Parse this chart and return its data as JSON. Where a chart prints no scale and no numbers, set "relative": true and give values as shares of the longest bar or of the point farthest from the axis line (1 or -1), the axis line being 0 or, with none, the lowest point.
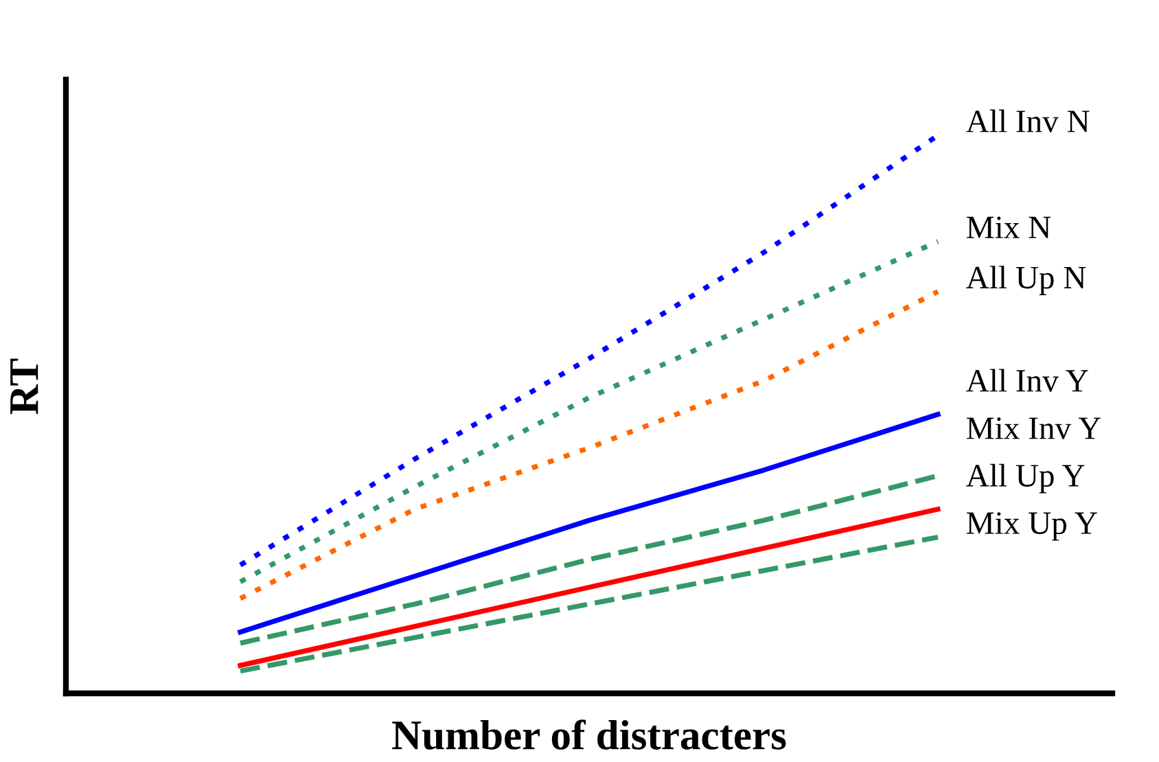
{
  "chart_data": {
    "type": "line",
    "relative": true,
    "xlabel": "Number of distracters",
    "ylabel": "RT",
    "categories": [
      null,
      null,
      null,
      null,
      null
    ],
    "legend": false,
    "grid": false,
    "tick_labels": false,
    "marker": "none",
    "series": [
      {
        "name": "All Inv N",
        "color": "#0000ff",
        "line_style": "dotted",
        "values": [
          0.23,
          0.42,
          0.6,
          0.79,
          1.0
        ]
      },
      {
        "name": "Mix N",
        "color": "#339966",
        "line_style": "dotted",
        "values": [
          0.2,
          0.37,
          0.53,
          0.67,
          0.81
        ]
      },
      {
        "name": "All Up N",
        "color": "#ff6600",
        "line_style": "dotted",
        "values": [
          0.17,
          0.33,
          0.44,
          0.56,
          0.72
        ]
      },
      {
        "name": "All Inv Y",
        "color": "#0000ff",
        "line_style": "solid",
        "values": [
          0.11,
          0.21,
          0.31,
          0.4,
          0.5
        ]
      },
      {
        "name": "Mix Inv Y",
        "color": "#339966",
        "line_style": "dashed",
        "values": [
          0.09,
          0.16,
          0.24,
          0.31,
          0.39
        ]
      },
      {
        "name": "All Up Y",
        "color": "#ff0000",
        "line_style": "solid",
        "values": [
          0.05,
          0.12,
          0.19,
          0.26,
          0.33
        ]
      },
      {
        "name": "Mix Up Y",
        "color": "#339966",
        "line_style": "dashed",
        "values": [
          0.04,
          0.1,
          0.16,
          0.22,
          0.28
        ]
      }
    ]
  }
}
